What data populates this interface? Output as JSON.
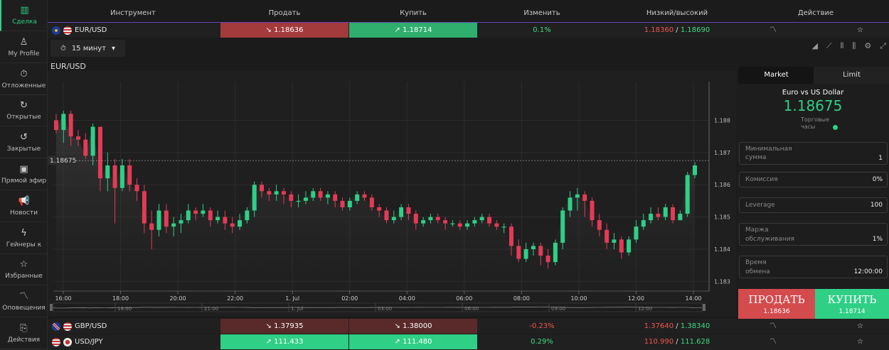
{
  "sidebar": {
    "items": [
      {
        "label": "Сделка",
        "icon": "bar-chart-icon",
        "active": true
      },
      {
        "label": "My Profile",
        "icon": "user-icon"
      },
      {
        "label": "Отложенные",
        "icon": "timer-icon"
      },
      {
        "label": "Открытые",
        "icon": "open-trades-icon"
      },
      {
        "label": "Закрытые",
        "icon": "closed-trades-icon"
      },
      {
        "label": "Прямой эфир",
        "icon": "live-tv-icon"
      },
      {
        "label": "Новости",
        "icon": "megaphone-icon"
      },
      {
        "label": "Гейнеры к",
        "icon": "lightning-icon"
      },
      {
        "label": "Избранные",
        "icon": "star-icon"
      },
      {
        "label": "Оповещения",
        "icon": "alert-icon"
      },
      {
        "label": "Действия",
        "icon": "actions-icon"
      }
    ]
  },
  "table": {
    "headers": {
      "instrument": "Инструмент",
      "sell": "Продать",
      "buy": "Купить",
      "change": "Изменить",
      "lowhigh": "Низкий/высокий",
      "action": "Действие"
    },
    "rows": [
      {
        "symbol": "EUR/USD",
        "sell": "↘ 1.18636",
        "buy": "↗ 1.18714",
        "change": "0.1%",
        "low": "1.18360",
        "high": "1.18690"
      },
      {
        "symbol": "GBP/USD",
        "sell": "↘ 1.37935",
        "buy": "↘ 1.38000",
        "change": "-0.23%",
        "low": "1.37640",
        "high": "1.38340"
      },
      {
        "symbol": "USD/JPY",
        "sell": "↗ 111.433",
        "buy": "↗ 111.480",
        "change": "0.29%",
        "low": "110.990",
        "high": "111.628"
      }
    ]
  },
  "chart": {
    "title": "EUR/USD",
    "timeframe": "15 минут",
    "current_price": "1.18675"
  },
  "panel": {
    "tab_market": "Market",
    "tab_limit": "Limit",
    "name": "Euro vs US Dollar",
    "price": "1.18675",
    "hours_label": "Торговые часы",
    "fields": [
      {
        "label": "Минимальная сумма",
        "value": "1"
      },
      {
        "label": "Комиссия",
        "value": "0%"
      },
      {
        "label": "Leverage",
        "value": "100"
      },
      {
        "label": "Маржа обслуживания",
        "value": "1%"
      },
      {
        "label": "Время обмена",
        "value": "12:00:00"
      }
    ],
    "sell_label": "ПРОДАТЬ",
    "sell_price": "1.18636",
    "buy_label": "КУПИТЬ",
    "buy_price": "1.18714"
  },
  "chart_data": {
    "type": "candlestick",
    "title": "EUR/USD",
    "ylim": [
      1.1827,
      1.1892
    ],
    "y_ticks": [
      "1.188",
      "1.187",
      "1.186",
      "1.185",
      "1.184",
      "1.183"
    ],
    "x_ticks": [
      "16:00",
      "18:00",
      "20:00",
      "22:00",
      "1. Jul",
      "02:00",
      "04:00",
      "06:00",
      "08:00",
      "10:00",
      "12:00",
      "14:00"
    ],
    "nav_ticks": [
      "18:00",
      "21:00",
      "1. Jul",
      "03:00",
      "06:00",
      "09:00",
      "12:00"
    ],
    "current_price": 1.18675,
    "candles": [
      [
        1.188,
        1.1877,
        1.1882,
        1.1876
      ],
      [
        1.1877,
        1.1882,
        1.1883,
        1.1873
      ],
      [
        1.1882,
        1.1875,
        1.1883,
        1.1872
      ],
      [
        1.1875,
        1.1874,
        1.1877,
        1.1872
      ],
      [
        1.1874,
        1.1869,
        1.1876,
        1.1868
      ],
      [
        1.1869,
        1.1878,
        1.1879,
        1.1866
      ],
      [
        1.1878,
        1.1862,
        1.1878,
        1.1858
      ],
      [
        1.1862,
        1.1866,
        1.187,
        1.1858
      ],
      [
        1.1866,
        1.1859,
        1.1868,
        1.1848
      ],
      [
        1.1859,
        1.1866,
        1.1868,
        1.1858
      ],
      [
        1.1866,
        1.186,
        1.1868,
        1.1858
      ],
      [
        1.186,
        1.1858,
        1.1862,
        1.1855
      ],
      [
        1.1858,
        1.1848,
        1.186,
        1.1845
      ],
      [
        1.1848,
        1.1846,
        1.1852,
        1.184
      ],
      [
        1.1846,
        1.1852,
        1.1854,
        1.1844
      ],
      [
        1.1852,
        1.1847,
        1.1854,
        1.1845
      ],
      [
        1.1847,
        1.1848,
        1.185,
        1.1844
      ],
      [
        1.1848,
        1.1849,
        1.1851,
        1.1845
      ],
      [
        1.1849,
        1.1852,
        1.1854,
        1.1848
      ],
      [
        1.1852,
        1.1851,
        1.1853,
        1.1849
      ],
      [
        1.1851,
        1.1852,
        1.1854,
        1.185
      ],
      [
        1.1852,
        1.1849,
        1.1853,
        1.1847
      ],
      [
        1.1849,
        1.185,
        1.1852,
        1.1848
      ],
      [
        1.185,
        1.1848,
        1.1852,
        1.1846
      ],
      [
        1.1848,
        1.1847,
        1.185,
        1.1845
      ],
      [
        1.1847,
        1.1849,
        1.1851,
        1.1846
      ],
      [
        1.1849,
        1.1852,
        1.1853,
        1.1848
      ],
      [
        1.1852,
        1.186,
        1.1861,
        1.185
      ],
      [
        1.186,
        1.1858,
        1.1861,
        1.1856
      ],
      [
        1.1858,
        1.1857,
        1.1859,
        1.1855
      ],
      [
        1.1857,
        1.1858,
        1.186,
        1.1855
      ],
      [
        1.1858,
        1.1857,
        1.1859,
        1.1854
      ],
      [
        1.1857,
        1.1855,
        1.1858,
        1.1853
      ],
      [
        1.1855,
        1.1855,
        1.1857,
        1.1853
      ],
      [
        1.1855,
        1.1856,
        1.1858,
        1.1854
      ],
      [
        1.1856,
        1.1858,
        1.1859,
        1.1855
      ],
      [
        1.1858,
        1.1856,
        1.1859,
        1.1855
      ],
      [
        1.1856,
        1.1857,
        1.1858,
        1.1854
      ],
      [
        1.1857,
        1.1855,
        1.1858,
        1.1853
      ],
      [
        1.1855,
        1.1853,
        1.1856,
        1.1852
      ],
      [
        1.1853,
        1.1855,
        1.1856,
        1.1852
      ],
      [
        1.1855,
        1.1857,
        1.1858,
        1.1854
      ],
      [
        1.1857,
        1.1856,
        1.1858,
        1.1855
      ],
      [
        1.1856,
        1.1853,
        1.1857,
        1.1852
      ],
      [
        1.1853,
        1.1852,
        1.1854,
        1.185
      ],
      [
        1.1852,
        1.1849,
        1.1853,
        1.1848
      ],
      [
        1.1849,
        1.185,
        1.1852,
        1.1848
      ],
      [
        1.185,
        1.1853,
        1.1854,
        1.1849
      ],
      [
        1.1853,
        1.1851,
        1.1854,
        1.1849
      ],
      [
        1.1851,
        1.1848,
        1.1852,
        1.1846
      ],
      [
        1.1848,
        1.1849,
        1.185,
        1.1847
      ],
      [
        1.1849,
        1.185,
        1.1851,
        1.1848
      ],
      [
        1.185,
        1.1849,
        1.1851,
        1.1848
      ],
      [
        1.1849,
        1.1848,
        1.185,
        1.1846
      ],
      [
        1.1848,
        1.1848,
        1.1849,
        1.1847
      ],
      [
        1.1848,
        1.1847,
        1.1849,
        1.1846
      ],
      [
        1.1847,
        1.1848,
        1.1849,
        1.1846
      ],
      [
        1.1848,
        1.1849,
        1.185,
        1.1847
      ],
      [
        1.1849,
        1.185,
        1.1851,
        1.1848
      ],
      [
        1.185,
        1.1848,
        1.1851,
        1.1847
      ],
      [
        1.1848,
        1.1847,
        1.1849,
        1.1846
      ],
      [
        1.1847,
        1.1847,
        1.1848,
        1.1845
      ],
      [
        1.1847,
        1.1841,
        1.1848,
        1.1838
      ],
      [
        1.1841,
        1.1837,
        1.1843,
        1.1836
      ],
      [
        1.1837,
        1.184,
        1.1842,
        1.1836
      ],
      [
        1.184,
        1.1841,
        1.1842,
        1.1838
      ],
      [
        1.1841,
        1.1838,
        1.1842,
        1.1835
      ],
      [
        1.1838,
        1.1836,
        1.184,
        1.1834
      ],
      [
        1.1836,
        1.1842,
        1.1843,
        1.1835
      ],
      [
        1.1842,
        1.1852,
        1.1853,
        1.184
      ],
      [
        1.1852,
        1.1856,
        1.1858,
        1.185
      ],
      [
        1.1856,
        1.1857,
        1.1859,
        1.1852
      ],
      [
        1.1857,
        1.1855,
        1.1858,
        1.185
      ],
      [
        1.1855,
        1.1849,
        1.1856,
        1.1847
      ],
      [
        1.1849,
        1.1846,
        1.1851,
        1.1844
      ],
      [
        1.1846,
        1.1842,
        1.1848,
        1.184
      ],
      [
        1.1842,
        1.1843,
        1.1845,
        1.184
      ],
      [
        1.1843,
        1.1839,
        1.1844,
        1.1837
      ],
      [
        1.1839,
        1.1843,
        1.1844,
        1.1838
      ],
      [
        1.1843,
        1.1847,
        1.1849,
        1.1842
      ],
      [
        1.1847,
        1.1849,
        1.1851,
        1.1846
      ],
      [
        1.1849,
        1.1851,
        1.1853,
        1.1848
      ],
      [
        1.1851,
        1.185,
        1.1853,
        1.1849
      ],
      [
        1.185,
        1.1853,
        1.1854,
        1.1849
      ],
      [
        1.1853,
        1.1849,
        1.1854,
        1.1848
      ],
      [
        1.1849,
        1.1851,
        1.1852,
        1.1849
      ],
      [
        1.1851,
        1.1863,
        1.1864,
        1.185
      ],
      [
        1.1863,
        1.1866,
        1.1867,
        1.1862
      ]
    ]
  }
}
